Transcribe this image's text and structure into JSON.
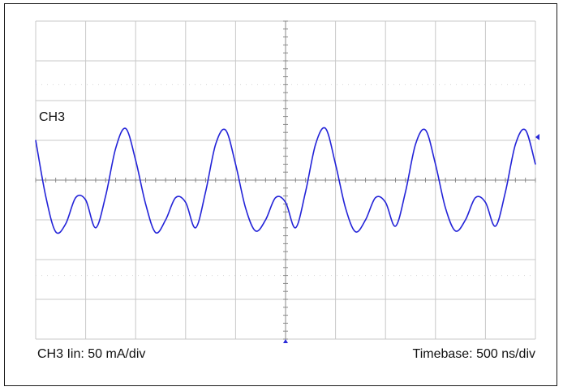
{
  "chart_data": {
    "type": "line",
    "title": "",
    "channel_label": "CH3",
    "vertical_scale_label": "CH3 Iin: 50 mA/div",
    "timebase_label": "Timebase: 500 ns/div",
    "x_unit": "ns",
    "y_unit": "mA",
    "xlim": [
      0,
      5000
    ],
    "ylim": [
      -200,
      200
    ],
    "x_divisions": 10,
    "y_divisions": 8,
    "grid": true,
    "colors": {
      "trace": "#2323d8",
      "grid": "#c8c8c8",
      "axis": "#8a8a8a",
      "marker": "#2a2ad8"
    },
    "series": [
      {
        "x": [
          0,
          100,
          200,
          300,
          400,
          500,
          600,
          700,
          800,
          900,
          1000,
          1100,
          1200,
          1300,
          1400,
          1500,
          1600,
          1700,
          1800,
          1900,
          2000,
          2100,
          2200,
          2300,
          2400,
          2500,
          2600,
          2700,
          2800,
          2900,
          3000,
          3100,
          3200,
          3300,
          3400,
          3500,
          3600,
          3700,
          3800,
          3900,
          4000,
          4100,
          4200,
          4300,
          4400,
          4500,
          4600,
          4700,
          4800,
          4900,
          5000
        ],
        "values": [
          50,
          -20,
          -65,
          -55,
          -22,
          -25,
          -60,
          -20,
          40,
          65,
          25,
          -30,
          -66,
          -50,
          -22,
          -28,
          -60,
          -15,
          45,
          63,
          20,
          -35,
          -64,
          -50,
          -22,
          -28,
          -60,
          -15,
          45,
          65,
          20,
          -35,
          -65,
          -50,
          -22,
          -28,
          -58,
          -15,
          45,
          63,
          20,
          -35,
          -64,
          -50,
          -22,
          -28,
          -58,
          -15,
          45,
          63,
          20
        ]
      }
    ]
  }
}
